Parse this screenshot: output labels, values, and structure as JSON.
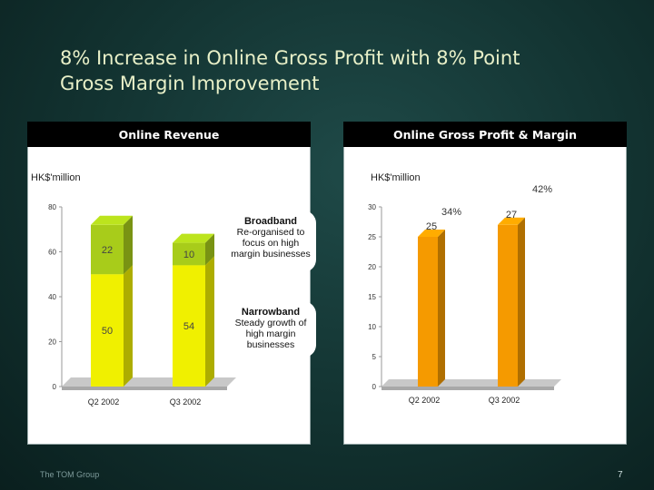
{
  "slide": {
    "title_line1": "8% Increase in Online Gross Profit with 8% Point",
    "title_line2": "Gross Margin Improvement",
    "footer_logo": "The TOM Group",
    "page_number": "7"
  },
  "left_panel": {
    "header": "Online Revenue",
    "unit": "HK$'million"
  },
  "right_panel": {
    "header": "Online Gross Profit & Margin",
    "unit": "HK$'million"
  },
  "callouts": {
    "broadband_title": "Broadband",
    "broadband_text": "Re-organised to focus on high margin businesses",
    "narrowband_title": "Narrowband",
    "narrowband_text": "Steady growth of high margin businesses"
  },
  "chart_data": [
    {
      "type": "bar",
      "stacked": true,
      "categories": [
        "Q2 2002",
        "Q3 2002"
      ],
      "series": [
        {
          "name": "Narrowband",
          "values": [
            50,
            54
          ],
          "color": "#f0f000"
        },
        {
          "name": "Broadband",
          "values": [
            22,
            10
          ],
          "color": "#a8cc1a"
        }
      ],
      "ylim": [
        0,
        80
      ],
      "yticks": [
        0,
        20,
        40,
        60,
        80
      ],
      "grid": false
    },
    {
      "type": "bar",
      "categories": [
        "Q2 2002",
        "Q3 2002"
      ],
      "values": [
        25,
        27
      ],
      "margins": [
        "34%",
        "42%"
      ],
      "color": "#f59a00",
      "ylim": [
        0,
        30
      ],
      "yticks": [
        0,
        5,
        10,
        15,
        20,
        25,
        30
      ],
      "grid": false
    }
  ]
}
